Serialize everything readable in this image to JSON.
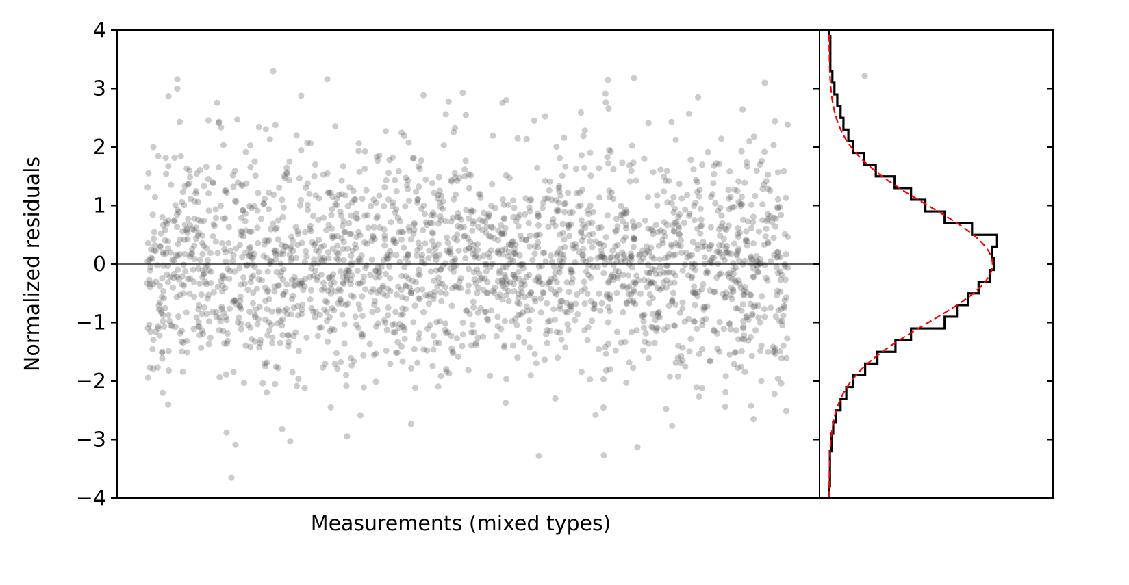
{
  "chart_data": [
    {
      "type": "scatter",
      "xlabel": "Measurements (mixed types)",
      "ylabel": "Normalized residuals",
      "ylim": [
        -4,
        4
      ],
      "yticks": [
        -4,
        -3,
        -2,
        -1,
        0,
        1,
        2,
        3,
        4
      ],
      "ytick_labels": [
        "−4",
        "−3",
        "−2",
        "−1",
        "0",
        "1",
        "2",
        "3",
        "4"
      ],
      "x_ticks_visible": false,
      "reference_line_y": 0,
      "point_color": "#555555",
      "point_alpha": 0.3,
      "n_points": 2200,
      "distribution": "approximately normal, mean 0, std 1",
      "notable_points": [
        {
          "x": 75,
          "y": 2.87
        },
        {
          "x": 88,
          "y": 3.16
        },
        {
          "x": 88,
          "y": 3.0
        },
        {
          "x": 228,
          "y": 3.3
        },
        {
          "x": 307,
          "y": 3.16
        },
        {
          "x": 505,
          "y": 2.93
        },
        {
          "x": 1092,
          "y": 3.22
        },
        {
          "x": 946,
          "y": 3.1
        },
        {
          "x": 755,
          "y": 3.18
        },
        {
          "x": 717,
          "y": 3.15
        },
        {
          "x": 167,
          "y": -3.65
        },
        {
          "x": 173,
          "y": -3.09
        },
        {
          "x": 616,
          "y": -3.28
        },
        {
          "x": 711,
          "y": -3.27
        },
        {
          "x": 760,
          "y": -3.13
        },
        {
          "x": 160,
          "y": -2.88
        },
        {
          "x": 241,
          "y": -2.82
        }
      ],
      "grid": false,
      "legend": "none"
    },
    {
      "type": "histogram",
      "orientation": "horizontal",
      "ylim": [
        -4,
        4
      ],
      "step_color": "#000000",
      "fit_color": "#ff0000",
      "fit_style": "dashed",
      "fit": "normal distribution, mean 0, std 1",
      "bins": [
        {
          "y0": -3.8,
          "y1": -3.2,
          "value": 0.002
        },
        {
          "y0": -3.2,
          "y1": -2.9,
          "value": 0.006
        },
        {
          "y0": -2.9,
          "y1": -2.7,
          "value": 0.01
        },
        {
          "y0": -2.7,
          "y1": -2.5,
          "value": 0.016
        },
        {
          "y0": -2.5,
          "y1": -2.3,
          "value": 0.028
        },
        {
          "y0": -2.3,
          "y1": -2.1,
          "value": 0.042
        },
        {
          "y0": -2.1,
          "y1": -1.9,
          "value": 0.058
        },
        {
          "y0": -1.9,
          "y1": -1.7,
          "value": 0.088
        },
        {
          "y0": -1.7,
          "y1": -1.5,
          "value": 0.118
        },
        {
          "y0": -1.5,
          "y1": -1.3,
          "value": 0.162
        },
        {
          "y0": -1.3,
          "y1": -1.1,
          "value": 0.2
        },
        {
          "y0": -1.1,
          "y1": -0.9,
          "value": 0.282
        },
        {
          "y0": -0.9,
          "y1": -0.7,
          "value": 0.312
        },
        {
          "y0": -0.7,
          "y1": -0.5,
          "value": 0.34
        },
        {
          "y0": -0.5,
          "y1": -0.3,
          "value": 0.365
        },
        {
          "y0": -0.3,
          "y1": -0.1,
          "value": 0.392
        },
        {
          "y0": -0.1,
          "y1": 0.1,
          "value": 0.402
        },
        {
          "y0": 0.1,
          "y1": 0.3,
          "value": 0.398
        },
        {
          "y0": 0.3,
          "y1": 0.5,
          "value": 0.41
        },
        {
          "y0": 0.5,
          "y1": 0.7,
          "value": 0.349
        },
        {
          "y0": 0.7,
          "y1": 0.9,
          "value": 0.282
        },
        {
          "y0": 0.9,
          "y1": 1.1,
          "value": 0.235
        },
        {
          "y0": 1.1,
          "y1": 1.3,
          "value": 0.2
        },
        {
          "y0": 1.3,
          "y1": 1.5,
          "value": 0.16
        },
        {
          "y0": 1.5,
          "y1": 1.7,
          "value": 0.114
        },
        {
          "y0": 1.7,
          "y1": 1.9,
          "value": 0.085
        },
        {
          "y0": 1.9,
          "y1": 2.1,
          "value": 0.058
        },
        {
          "y0": 2.1,
          "y1": 2.3,
          "value": 0.047
        },
        {
          "y0": 2.3,
          "y1": 2.5,
          "value": 0.035
        },
        {
          "y0": 2.5,
          "y1": 2.7,
          "value": 0.028
        },
        {
          "y0": 2.7,
          "y1": 2.9,
          "value": 0.02
        },
        {
          "y0": 2.9,
          "y1": 3.1,
          "value": 0.013
        },
        {
          "y0": 3.1,
          "y1": 3.3,
          "value": 0.008
        },
        {
          "y0": 3.3,
          "y1": 3.9,
          "value": 0.003
        }
      ],
      "xlim": [
        0,
        0.57
      ],
      "x_ticks_visible": false,
      "y_tick_labels_visible": false
    }
  ]
}
